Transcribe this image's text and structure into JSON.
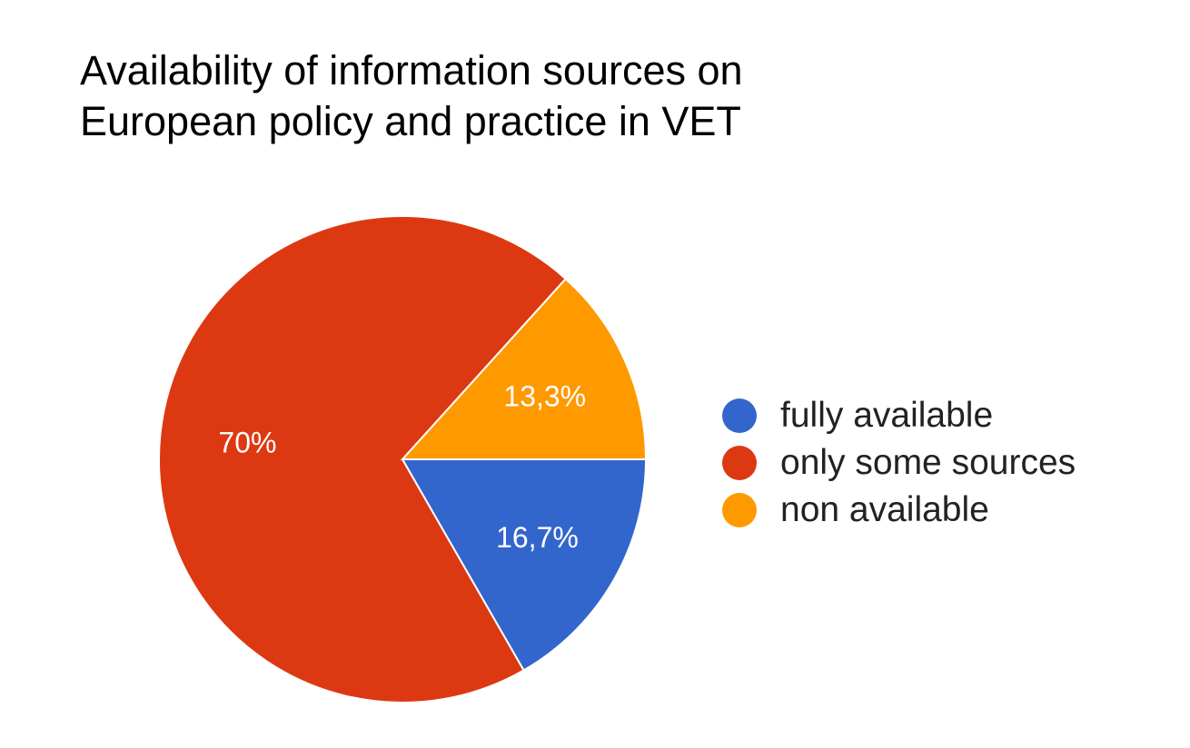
{
  "chart_data": {
    "type": "pie",
    "title_lines": [
      "Availability of information sources on",
      "European policy and practice in VET"
    ],
    "slices": [
      {
        "name": "fully available",
        "value": 16.7,
        "label": "16,7%",
        "color": "#3366cc"
      },
      {
        "name": "only some sources",
        "value": 70,
        "label": "70%",
        "color": "#dc3912"
      },
      {
        "name": "non available",
        "value": 13.3,
        "label": "13,3%",
        "color": "#ff9900"
      }
    ],
    "legend_position": "right",
    "start_direction": "east, clockwise"
  }
}
